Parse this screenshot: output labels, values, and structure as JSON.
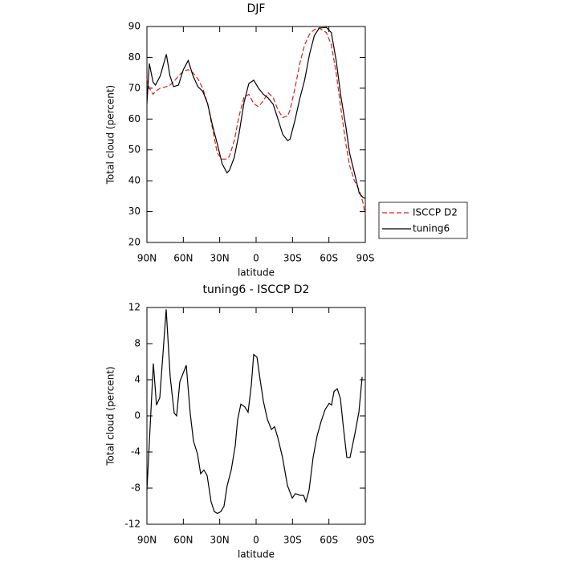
{
  "chart_data": [
    {
      "type": "line",
      "title": "DJF",
      "x_label": "latitude",
      "y_label": "Total cloud (percent)",
      "x": [
        90,
        88,
        85,
        83,
        79,
        74,
        71,
        68,
        64,
        60,
        56,
        52,
        48,
        44,
        40,
        36,
        32,
        28,
        24,
        22,
        18,
        14,
        10,
        6,
        2,
        -2,
        -6,
        -10,
        -14,
        -18,
        -22,
        -26,
        -28,
        -32,
        -36,
        -40,
        -44,
        -48,
        -52,
        -58,
        -62,
        -66,
        -70,
        -74,
        -77,
        -81,
        -85,
        -88,
        -90
      ],
      "series": [
        {
          "name": "ISCCP D2",
          "color": "#e41a1c",
          "dash": true,
          "values": [
            73,
            70,
            68,
            69,
            70,
            70.5,
            71,
            72,
            74,
            75.5,
            76,
            75,
            73,
            70,
            65,
            57,
            49,
            47,
            47,
            48,
            53,
            61,
            67,
            68,
            65,
            64,
            66,
            68.5,
            67,
            63,
            60.5,
            61,
            63,
            70,
            78,
            84,
            87.5,
            89,
            89.5,
            88,
            84,
            75,
            63,
            52,
            45,
            40,
            37,
            33,
            29
          ]
        },
        {
          "name": "tuning6",
          "color": "#000000",
          "dash": false,
          "values": [
            65,
            78,
            72,
            71,
            74,
            81,
            74,
            70.5,
            71,
            76,
            79,
            74,
            70.5,
            69,
            65,
            58,
            52,
            45.5,
            42.6,
            43.4,
            47.6,
            55.4,
            65.3,
            71.5,
            72.6,
            70,
            68,
            66.8,
            64.8,
            60,
            55,
            53,
            53.5,
            59.6,
            66.6,
            72.6,
            81,
            87,
            89.5,
            89.7,
            88,
            79,
            67,
            57.5,
            49,
            42.6,
            36,
            34.6,
            34.3
          ]
        }
      ],
      "xlim": [
        90,
        -90
      ],
      "xticks": [
        {
          "value": 90,
          "label": "90N"
        },
        {
          "value": 60,
          "label": "60N"
        },
        {
          "value": 30,
          "label": "30N"
        },
        0,
        {
          "value": -30,
          "label": "30S"
        },
        {
          "value": -60,
          "label": "60S"
        },
        {
          "value": -90,
          "label": "90S"
        }
      ],
      "ylim": [
        20,
        90
      ],
      "yticks": [
        20,
        30,
        40,
        50,
        60,
        70,
        80,
        90
      ],
      "legend": true
    },
    {
      "type": "line",
      "title": "tuning6 - ISCCP D2",
      "x_label": "latitude",
      "y_label": "Total cloud (percent)",
      "x": [
        90,
        84.7,
        82.1,
        79.4,
        74.1,
        70.8,
        67.5,
        65.5,
        62.9,
        57.6,
        54.3,
        51.6,
        48.3,
        45.7,
        43,
        40.4,
        37.1,
        34.4,
        31.8,
        29.1,
        26.5,
        23.8,
        20.5,
        17.2,
        15.2,
        12.6,
        9.3,
        6.6,
        4,
        2,
        -0.7,
        -3.3,
        -6,
        -9.3,
        -12.6,
        -15.2,
        -17.9,
        -21.8,
        -25.8,
        -29.8,
        -32.4,
        -36.4,
        -39.1,
        -41,
        -43.7,
        -47,
        -50.3,
        -53.6,
        -56.9,
        -60.2,
        -62.2,
        -64.2,
        -66.9,
        -69.5,
        -72.1,
        -74.8,
        -77.4,
        -81.4,
        -84.7,
        -87.4
      ],
      "series": [
        {
          "name": "tuning6 - ISCCP D2",
          "color": "#000000",
          "dash": false,
          "values": [
            -8.2,
            5.8,
            1.2,
            2,
            11.8,
            4.3,
            0.3,
            0,
            3.8,
            5.6,
            0.3,
            -2.8,
            -4.2,
            -6.4,
            -6,
            -6.6,
            -9.5,
            -10.6,
            -10.8,
            -10.6,
            -10,
            -7.7,
            -6,
            -3.3,
            -0.4,
            1.3,
            1,
            0.4,
            3.4,
            6.8,
            6.5,
            4,
            1.6,
            -0.4,
            -1.5,
            -1.2,
            -2.4,
            -4.6,
            -7.7,
            -9.1,
            -8.6,
            -8.8,
            -8.8,
            -9.5,
            -8.2,
            -4.6,
            -2.2,
            -0.6,
            0.7,
            1.4,
            1.2,
            2.7,
            3,
            1.9,
            -1.5,
            -4.6,
            -4.6,
            -2,
            0.4,
            4.3
          ]
        }
      ],
      "xlim": [
        90,
        -90
      ],
      "xticks": [
        {
          "value": 90,
          "label": "90N"
        },
        {
          "value": 60,
          "label": "60N"
        },
        {
          "value": 30,
          "label": "30N"
        },
        0,
        {
          "value": -30,
          "label": "30S"
        },
        {
          "value": -60,
          "label": "60S"
        },
        {
          "value": -90,
          "label": "90S"
        }
      ],
      "ylim": [
        -12,
        12
      ],
      "yticks": [
        -12,
        -8,
        -4,
        0,
        4,
        8,
        12
      ],
      "legend": false
    }
  ]
}
